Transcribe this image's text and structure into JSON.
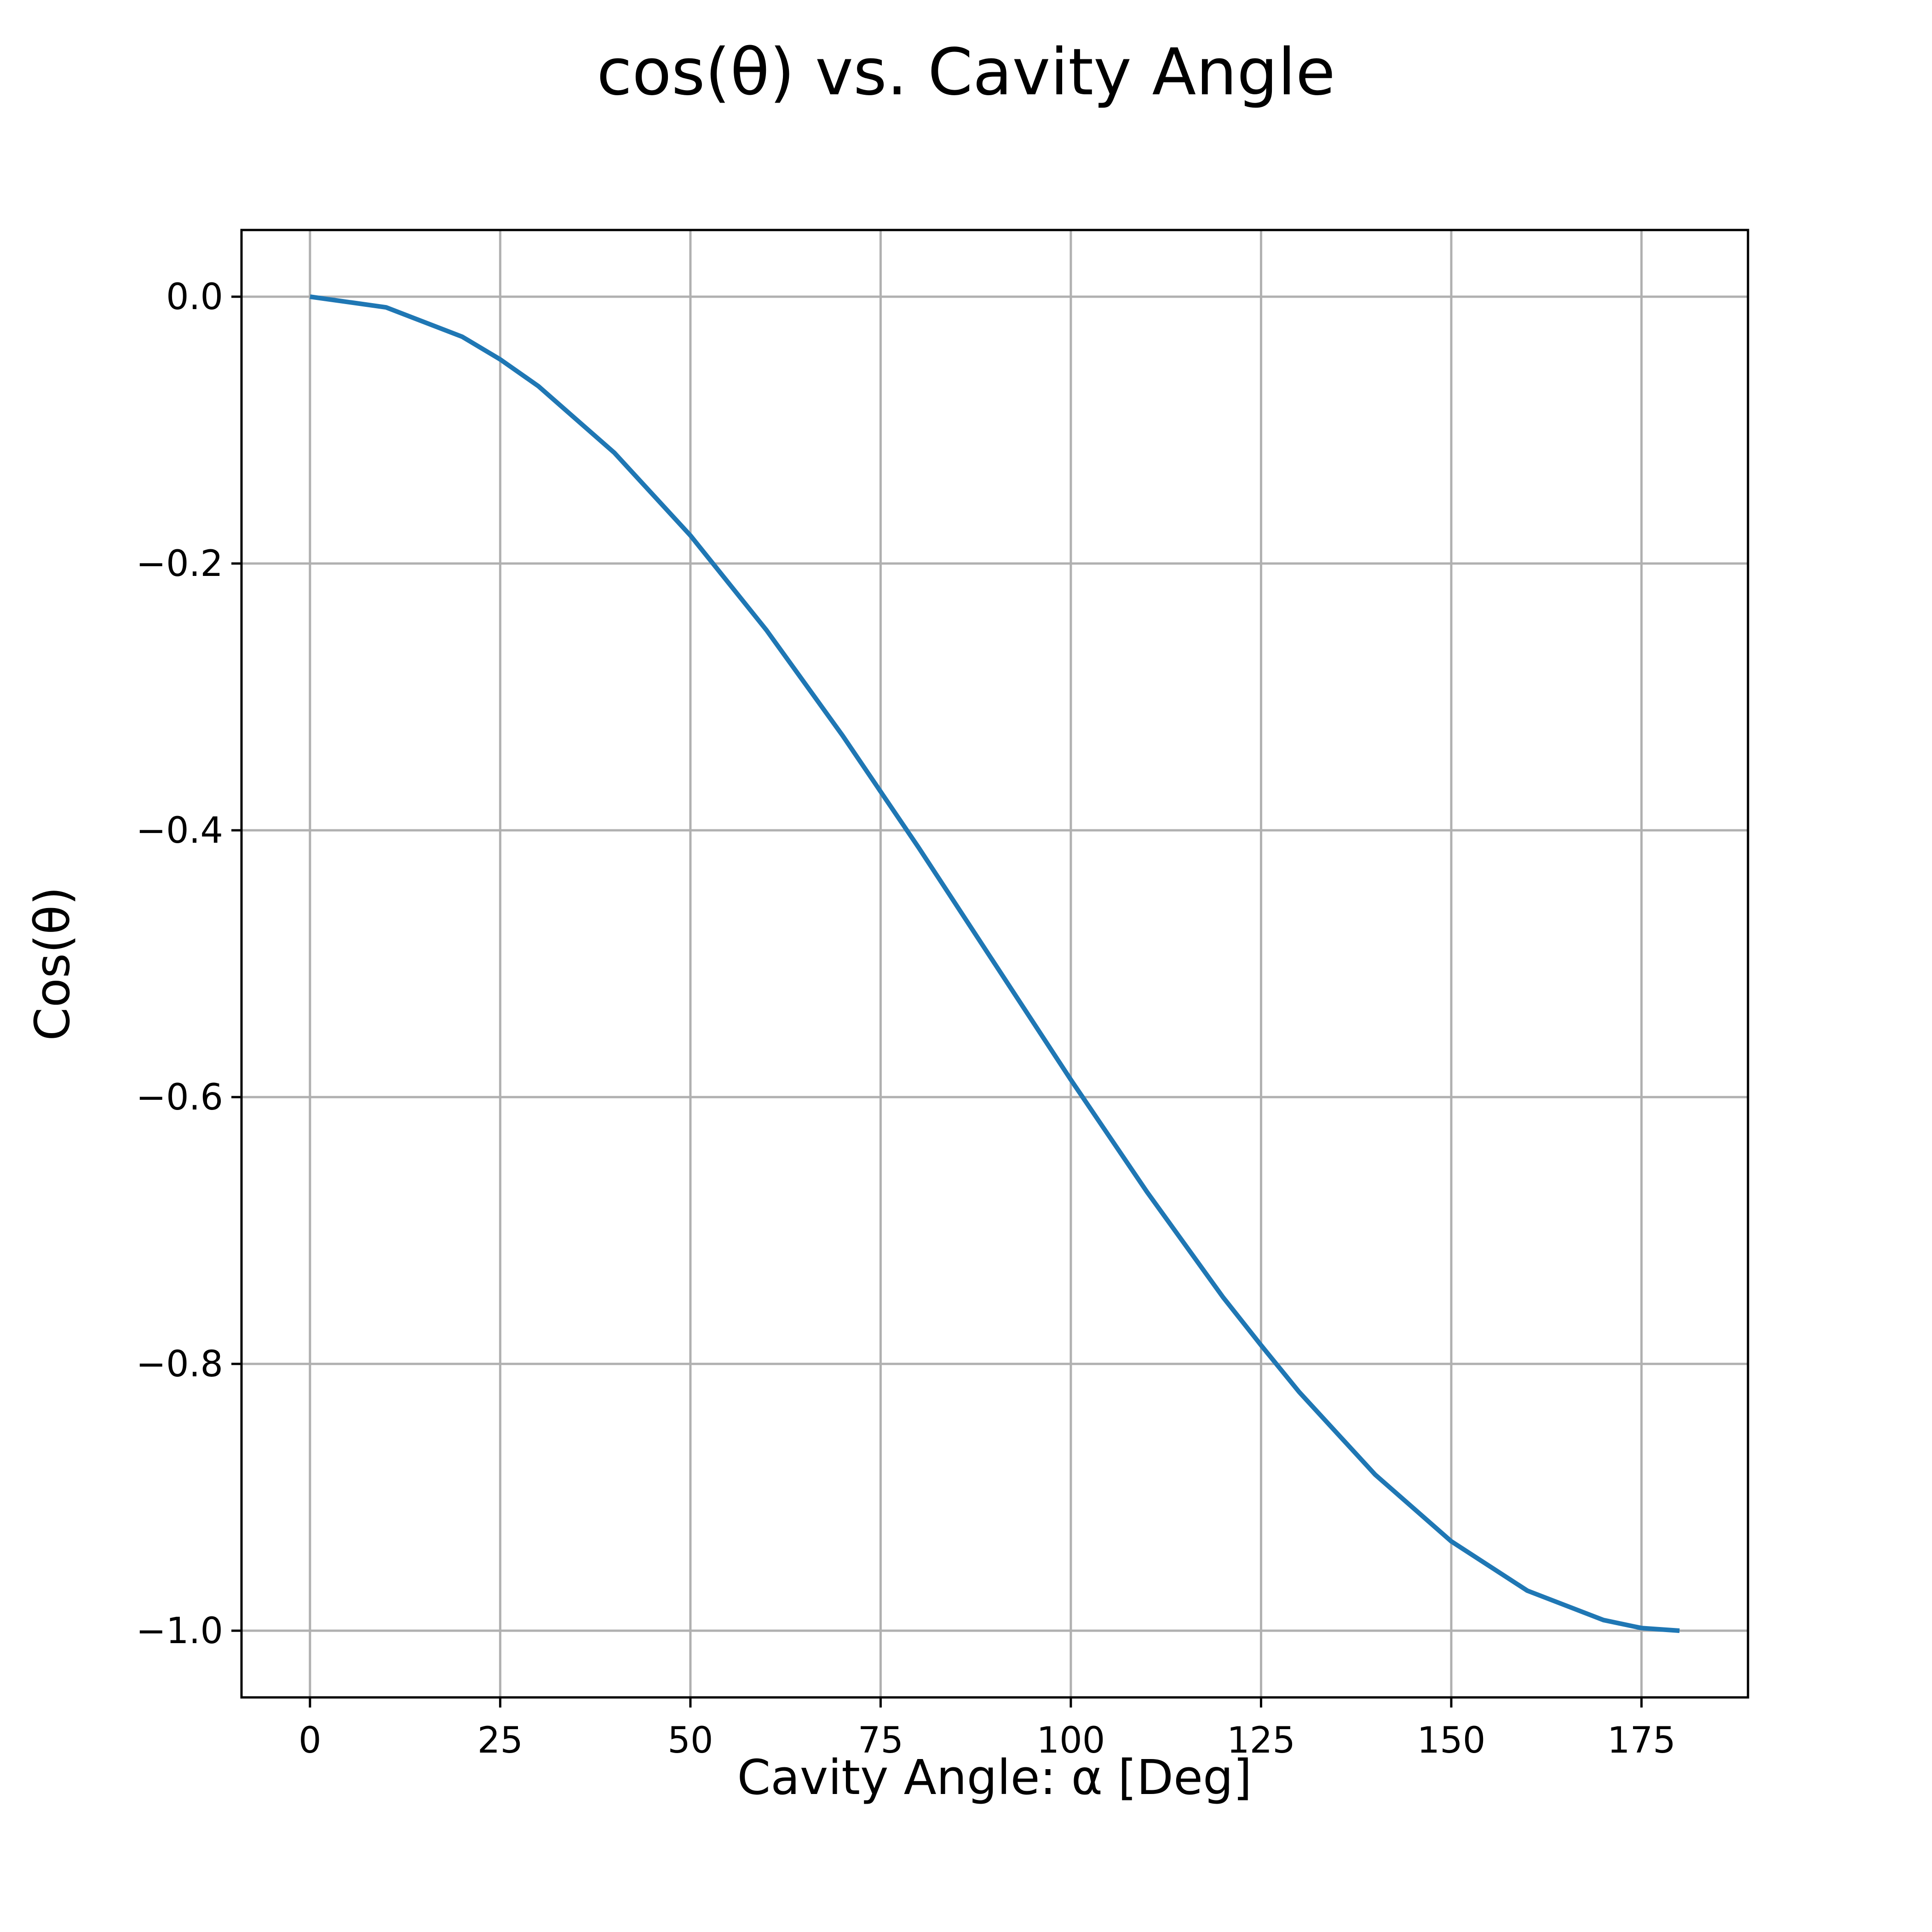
{
  "chart_data": {
    "type": "line",
    "title": "cos(θ) vs. Cavity Angle",
    "xlabel": "Cavity Angle: α [Deg]",
    "ylabel": "Cos(θ)",
    "xlim": [
      -9,
      189
    ],
    "ylim": [
      -1.05,
      0.05
    ],
    "grid": true,
    "x_ticks": [
      0,
      25,
      50,
      75,
      100,
      125,
      150,
      175
    ],
    "x_tick_labels": [
      "0",
      "25",
      "50",
      "75",
      "100",
      "125",
      "150",
      "175"
    ],
    "y_ticks": [
      0.0,
      -0.2,
      -0.4,
      -0.6,
      -0.8,
      -1.0
    ],
    "y_tick_labels": [
      "0.0",
      "−0.2",
      "−0.4",
      "−0.6",
      "−0.8",
      "−1.0"
    ],
    "series": [
      {
        "color": "#1f77b4",
        "x": [
          0,
          10,
          20,
          25,
          30,
          40,
          50,
          60,
          70,
          75,
          80,
          90,
          100,
          110,
          120,
          125,
          130,
          140,
          150,
          160,
          170,
          175,
          180
        ],
        "y": [
          0.0,
          -0.008,
          -0.03,
          -0.047,
          -0.067,
          -0.117,
          -0.179,
          -0.25,
          -0.329,
          -0.371,
          -0.413,
          -0.5,
          -0.587,
          -0.671,
          -0.75,
          -0.786,
          -0.821,
          -0.883,
          -0.933,
          -0.97,
          -0.992,
          -0.998,
          -1.0
        ]
      }
    ]
  }
}
